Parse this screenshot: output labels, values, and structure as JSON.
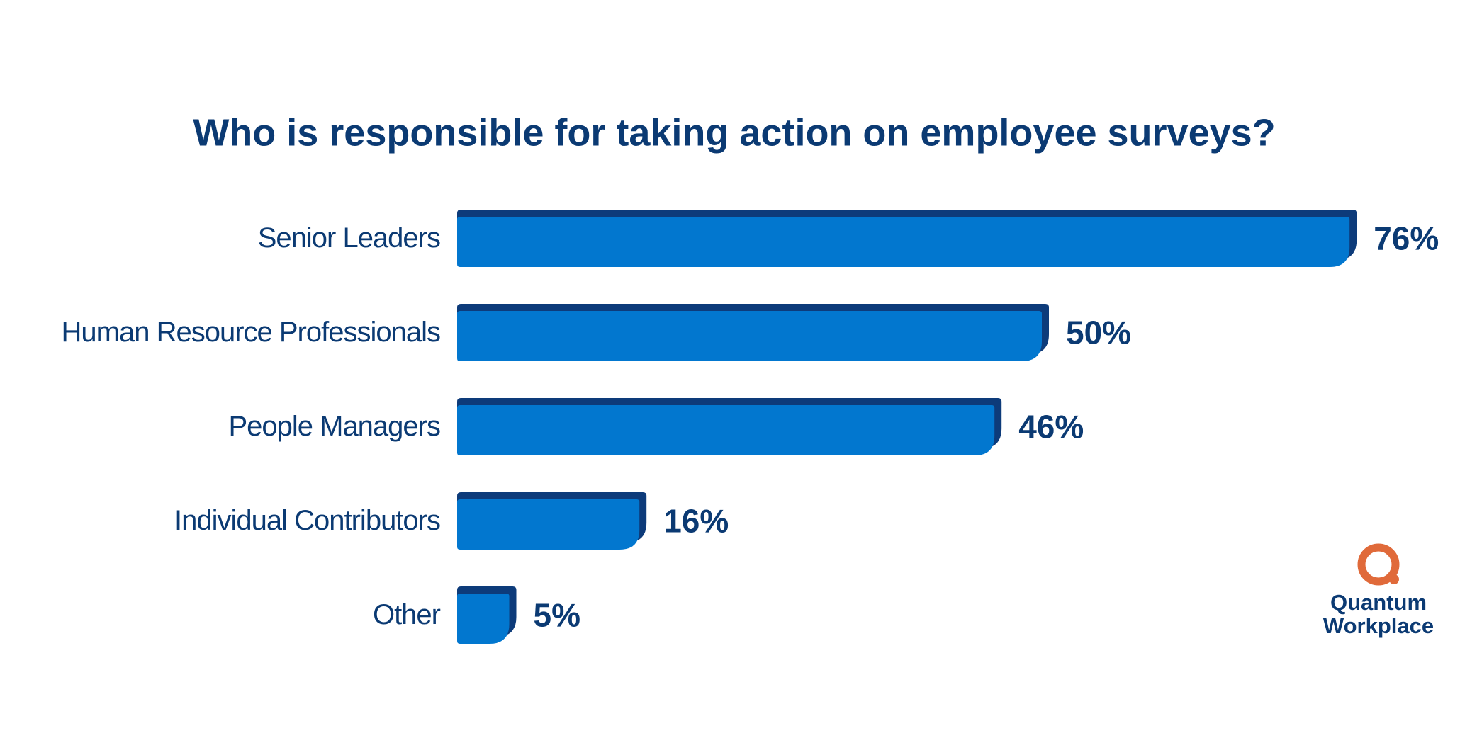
{
  "chart_data": {
    "type": "hbar",
    "title": "Who is responsible for taking action on employee surveys?",
    "categories": [
      "Senior Leaders",
      "Human Resource Professionals",
      "People Managers",
      "Individual Contributors",
      "Other"
    ],
    "values": [
      76,
      50,
      46,
      16,
      5
    ],
    "value_labels": [
      "76%",
      "50%",
      "46%",
      "16%",
      "5%"
    ],
    "color": "#0277cf",
    "edge_color": "#0d3b7a"
  },
  "logo": {
    "line1": "Quantum",
    "line2": "Workplace",
    "color": "#e06a3a"
  }
}
